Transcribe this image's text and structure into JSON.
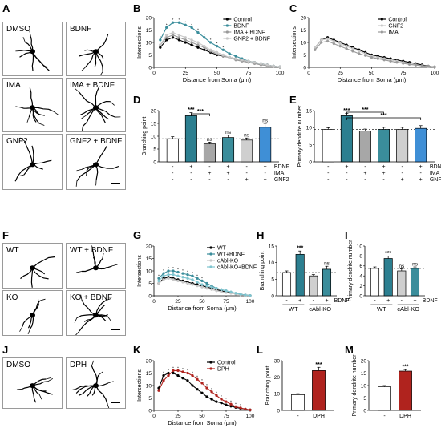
{
  "panel_labels": [
    "A",
    "B",
    "C",
    "D",
    "E",
    "F",
    "G",
    "H",
    "I",
    "J",
    "K",
    "L",
    "M"
  ],
  "images": {
    "A": [
      "DMSO",
      "BDNF",
      "IMA",
      "IMA + BDNF",
      "GNF2",
      "GNF2 + BDNF"
    ],
    "F": [
      "WT",
      "WT + BDNF",
      "KO",
      "KO + BDNF"
    ],
    "J": [
      "DMSO",
      "DPH"
    ]
  },
  "text": {
    "intersections": "Intersections",
    "distance": "Distance from Soma (μm)",
    "branching": "Branching point",
    "primary": "Primary dendrite number",
    "bdnf": "BDNF",
    "ima": "IMA",
    "gnf2": "GNF2",
    "wt": "WT",
    "cablko": "cAbl-KO",
    "dph": "DPH",
    "sig3": "***",
    "ns": "ns",
    "minus": "-",
    "plus": "+"
  },
  "colors": {
    "control": "#000000",
    "bdnf": "#3a8d9b",
    "ima": "#9a9a9a",
    "gnf2": "#c8c8c8",
    "dph": "#b0231e",
    "bar_gray": "#a7a7a7",
    "bar_teal": "#2c7f90",
    "bar_lightgray": "#cfcfcf",
    "bar_blue": "#3f8fd6"
  },
  "chart_data": [
    {
      "id": "B",
      "type": "line",
      "xlabel": "Distance from Soma (μm)",
      "ylabel": "Intersections",
      "xlim": [
        0,
        100
      ],
      "ylim": [
        0,
        20
      ],
      "xticks": [
        0,
        25,
        50,
        75,
        100
      ],
      "yticks": [
        0,
        5,
        10,
        15,
        20
      ],
      "legend": [
        "Control",
        "BDNF",
        "IMA + BDNF",
        "GNF2 + BDNF"
      ],
      "legend_placement": "top-right",
      "x": [
        5,
        10,
        15,
        20,
        25,
        30,
        35,
        40,
        45,
        50,
        55,
        60,
        65,
        70,
        75,
        80,
        85,
        90,
        95,
        100
      ],
      "series": [
        {
          "name": "Control",
          "values": [
            8,
            11,
            12,
            11,
            10,
            9,
            8,
            7,
            6,
            5,
            4.5,
            4,
            3.5,
            3,
            2.5,
            2,
            1.5,
            1,
            0.5,
            0.2
          ]
        },
        {
          "name": "BDNF",
          "values": [
            11,
            16,
            18,
            18,
            17,
            16,
            14,
            12,
            10,
            8.5,
            7,
            5.5,
            4.5,
            3.5,
            2.5,
            2,
            1.5,
            1,
            0.5,
            0.2
          ]
        },
        {
          "name": "IMA + BDNF",
          "values": [
            9,
            12,
            13,
            12,
            11,
            10,
            9,
            8,
            6.5,
            5.5,
            4.5,
            4,
            3,
            2.5,
            2,
            1.5,
            1,
            0.7,
            0.4,
            0.2
          ]
        },
        {
          "name": "GNF2 + BDNF",
          "values": [
            9,
            13,
            14,
            13,
            12,
            11,
            10,
            8.5,
            7,
            6,
            5,
            4,
            3.5,
            3,
            2.5,
            2,
            1.5,
            1,
            0.5,
            0.2
          ]
        }
      ]
    },
    {
      "id": "C",
      "type": "line",
      "xlabel": "Distance from Soma (μm)",
      "ylabel": "Intersections",
      "xlim": [
        0,
        100
      ],
      "ylim": [
        0,
        20
      ],
      "xticks": [
        0,
        25,
        50,
        75,
        100
      ],
      "yticks": [
        0,
        5,
        10,
        15,
        20
      ],
      "legend": [
        "Control",
        "GNF2",
        "IMA"
      ],
      "legend_placement": "top-right",
      "x": [
        5,
        10,
        15,
        20,
        25,
        30,
        35,
        40,
        45,
        50,
        55,
        60,
        65,
        70,
        75,
        80,
        85,
        90,
        95,
        100
      ],
      "series": [
        {
          "name": "Control",
          "values": [
            8,
            11,
            12,
            11,
            10,
            9,
            8,
            7,
            6,
            5,
            4.5,
            4,
            3.5,
            3,
            2.5,
            2,
            1.5,
            1,
            0.5,
            0.2
          ]
        },
        {
          "name": "GNF2",
          "values": [
            8,
            11,
            11.5,
            10.5,
            9.5,
            8.5,
            7.5,
            6.5,
            5.5,
            4.5,
            4,
            3.5,
            3,
            2.5,
            2,
            1.5,
            1,
            0.7,
            0.4,
            0.2
          ]
        },
        {
          "name": "IMA",
          "values": [
            7,
            10,
            10.5,
            9.5,
            8.5,
            7.5,
            6.5,
            5.5,
            4.8,
            4,
            3.5,
            3,
            2.5,
            2,
            1.6,
            1.2,
            0.9,
            0.6,
            0.3,
            0.1
          ]
        }
      ]
    },
    {
      "id": "D",
      "type": "bar",
      "ylabel": "Branching point",
      "ylim": [
        0,
        20
      ],
      "yticks": [
        0,
        5,
        10,
        15,
        20
      ],
      "values": [
        9,
        18,
        7,
        9.5,
        8.5,
        13.5
      ],
      "errors": [
        0.8,
        1.2,
        0.7,
        0.9,
        0.8,
        1.5
      ],
      "colors": [
        "#ffffff",
        "#2c7f90",
        "#a7a7a7",
        "#3a8d9b",
        "#cfcfcf",
        "#3f8fd6"
      ],
      "annotations": [
        "",
        "***",
        "ns",
        "ns",
        "ns",
        "ns"
      ],
      "bracket": [
        [
          1,
          2,
          "***"
        ]
      ],
      "dashed_line": 9,
      "conditions": {
        "BDNF": [
          "-",
          "+",
          "-",
          "+",
          "-",
          "+"
        ],
        "IMA": [
          "-",
          "-",
          "+",
          "+",
          "-",
          "-"
        ],
        "GNF2": [
          "-",
          "-",
          "-",
          "-",
          "+",
          "+"
        ]
      }
    },
    {
      "id": "E",
      "type": "bar",
      "ylabel": "Primary dendrite number",
      "ylim": [
        0,
        15
      ],
      "yticks": [
        0,
        5,
        10,
        15
      ],
      "values": [
        9.5,
        13.5,
        9,
        9.5,
        9.5,
        9.8
      ],
      "errors": [
        0.5,
        0.7,
        0.6,
        0.6,
        0.6,
        0.8
      ],
      "colors": [
        "#ffffff",
        "#2c7f90",
        "#a7a7a7",
        "#3a8d9b",
        "#cfcfcf",
        "#3f8fd6"
      ],
      "annotations": [
        "",
        "***",
        "",
        "",
        "",
        ""
      ],
      "bracket": [
        [
          1,
          3,
          "***"
        ],
        [
          1,
          5,
          "***"
        ]
      ],
      "dashed_line": 9.5,
      "conditions": {
        "BDNF": [
          "-",
          "+",
          "-",
          "+",
          "-",
          "+"
        ],
        "IMA": [
          "-",
          "-",
          "+",
          "+",
          "-",
          "-"
        ],
        "GNF2": [
          "-",
          "-",
          "-",
          "-",
          "+",
          "+"
        ]
      }
    },
    {
      "id": "G",
      "type": "line",
      "xlabel": "Distance from Soma (μm)",
      "ylabel": "Intersections",
      "xlim": [
        0,
        100
      ],
      "ylim": [
        0,
        20
      ],
      "xticks": [
        0,
        25,
        50,
        75,
        100
      ],
      "yticks": [
        0,
        5,
        10,
        15,
        20
      ],
      "legend": [
        "WT",
        "WT+BDNF",
        "cAbl-KO",
        "cAbl-KO+BDNF"
      ],
      "legend_placement": "top-right",
      "x": [
        5,
        10,
        15,
        20,
        25,
        30,
        35,
        40,
        45,
        50,
        55,
        60,
        65,
        70,
        75,
        80,
        85,
        90,
        95,
        100
      ],
      "series": [
        {
          "name": "WT",
          "values": [
            5,
            7,
            7.5,
            7,
            6.5,
            6,
            5.5,
            5,
            4.5,
            4,
            3.5,
            3,
            2.5,
            2,
            1.5,
            1.2,
            0.9,
            0.6,
            0.3,
            0.1
          ]
        },
        {
          "name": "WT+BDNF",
          "values": [
            7,
            9,
            10,
            10,
            9.5,
            9,
            8.5,
            8,
            7,
            6,
            5,
            4,
            3,
            2.5,
            2,
            1.5,
            1,
            0.6,
            0.3,
            0.1
          ]
        },
        {
          "name": "cAbl-KO",
          "values": [
            5,
            6.5,
            7,
            6.5,
            6,
            5.5,
            5,
            4.5,
            4,
            3.5,
            3,
            2.5,
            2,
            1.6,
            1.3,
            1,
            0.7,
            0.4,
            0.2,
            0.1
          ]
        },
        {
          "name": "cAbl-KO+BDNF",
          "values": [
            6,
            8,
            8.5,
            8.5,
            8,
            7.5,
            7,
            6.5,
            5.5,
            4.5,
            4,
            3.5,
            3,
            2.5,
            2,
            1.5,
            1,
            0.6,
            0.3,
            0.1
          ]
        }
      ]
    },
    {
      "id": "H",
      "type": "bar",
      "ylabel": "Branching point",
      "ylim": [
        0,
        15
      ],
      "yticks": [
        0,
        5,
        10,
        15
      ],
      "values": [
        7,
        12.5,
        6,
        8
      ],
      "errors": [
        0.5,
        1,
        0.4,
        0.9
      ],
      "colors": [
        "#ffffff",
        "#2c7f90",
        "#cfcfcf",
        "#3a8d9b"
      ],
      "annotations": [
        "",
        "***",
        "",
        "ns"
      ],
      "dashed_line": 7,
      "conditions": {
        "BDNF": [
          "-",
          "+",
          "-",
          "+"
        ]
      },
      "groups": [
        "WT",
        "cAbl-KO"
      ]
    },
    {
      "id": "I",
      "type": "bar",
      "ylabel": "Primary dendrite number",
      "ylim": [
        0,
        10
      ],
      "yticks": [
        0,
        2,
        4,
        6,
        8,
        10
      ],
      "values": [
        5.5,
        7.5,
        5,
        5.5
      ],
      "errors": [
        0.3,
        0.5,
        0.4,
        0.3
      ],
      "colors": [
        "#ffffff",
        "#2c7f90",
        "#cfcfcf",
        "#3a8d9b"
      ],
      "annotations": [
        "",
        "***",
        "ns",
        "ns"
      ],
      "dashed_line": 5.5,
      "conditions": {
        "BDNF": [
          "-",
          "+",
          "-",
          "+"
        ]
      },
      "groups": [
        "WT",
        "cAbl-KO"
      ]
    },
    {
      "id": "K",
      "type": "line",
      "xlabel": "Distance from Soma (μm)",
      "ylabel": "Intersections",
      "xlim": [
        0,
        100
      ],
      "ylim": [
        0,
        20
      ],
      "xticks": [
        0,
        25,
        50,
        75,
        100
      ],
      "yticks": [
        0,
        5,
        10,
        15,
        20
      ],
      "legend": [
        "Control",
        "DPH"
      ],
      "legend_placement": "top-right",
      "x": [
        5,
        10,
        15,
        20,
        25,
        30,
        35,
        40,
        45,
        50,
        55,
        60,
        65,
        70,
        75,
        80,
        85,
        90,
        95,
        100
      ],
      "series": [
        {
          "name": "Control",
          "values": [
            9,
            14,
            15,
            15,
            14,
            13,
            12,
            10,
            8.5,
            7,
            5.5,
            4.5,
            3.5,
            3,
            2.2,
            1.7,
            1.2,
            0.8,
            0.5,
            0.2
          ]
        },
        {
          "name": "DPH",
          "values": [
            8,
            12,
            14,
            16,
            16,
            15.5,
            15,
            14,
            12.5,
            11,
            9,
            7.5,
            6,
            4.5,
            3.5,
            2.5,
            1.5,
            1,
            0.5,
            0.2
          ]
        }
      ]
    },
    {
      "id": "L",
      "type": "bar",
      "ylabel": "Branching point",
      "ylim": [
        0,
        30
      ],
      "yticks": [
        0,
        10,
        20,
        30
      ],
      "categories": [
        "-",
        "DPH"
      ],
      "values": [
        9.5,
        24
      ],
      "errors": [
        0.6,
        2
      ],
      "colors": [
        "#ffffff",
        "#b0231e"
      ],
      "annotations": [
        "",
        "***"
      ]
    },
    {
      "id": "M",
      "type": "bar",
      "ylabel": "Primary dendrite number",
      "ylim": [
        0,
        20
      ],
      "yticks": [
        0,
        5,
        10,
        15,
        20
      ],
      "categories": [
        "-",
        "DPH"
      ],
      "values": [
        9.5,
        15.8
      ],
      "errors": [
        0.5,
        0.6
      ],
      "colors": [
        "#ffffff",
        "#b0231e"
      ],
      "annotations": [
        "",
        "***"
      ]
    }
  ]
}
